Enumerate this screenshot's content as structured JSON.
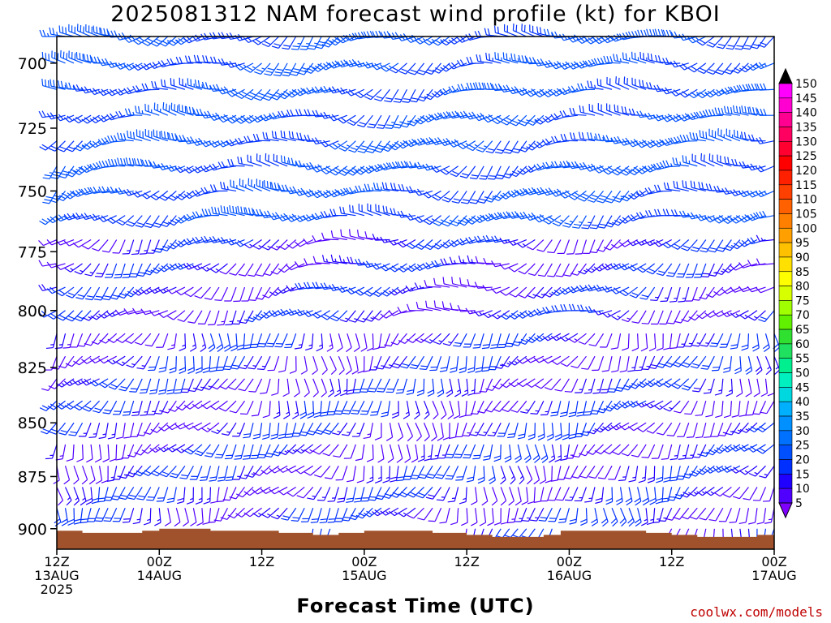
{
  "chart_data": {
    "type": "wind-barb-time-height",
    "title": "2025081312 NAM forecast wind profile (kt) for KBOI",
    "xlabel": "Forecast Time (UTC)",
    "credit": "coolwx.com/models",
    "y_axis": {
      "quantity": "pressure (hPa)",
      "range": [
        910,
        690
      ],
      "ticks": [
        "700",
        "725",
        "750",
        "775",
        "800",
        "825",
        "850",
        "875",
        "900"
      ]
    },
    "x_axis": {
      "range_hours": [
        0,
        84
      ],
      "ticks": [
        {
          "hour": 0,
          "line1": "12Z",
          "line2": "13AUG",
          "line3": "2025"
        },
        {
          "hour": 12,
          "line1": "00Z",
          "line2": "14AUG",
          "line3": ""
        },
        {
          "hour": 24,
          "line1": "12Z",
          "line2": "",
          "line3": ""
        },
        {
          "hour": 36,
          "line1": "00Z",
          "line2": "15AUG",
          "line3": ""
        },
        {
          "hour": 48,
          "line1": "12Z",
          "line2": "",
          "line3": ""
        },
        {
          "hour": 60,
          "line1": "00Z",
          "line2": "16AUG",
          "line3": ""
        },
        {
          "hour": 72,
          "line1": "12Z",
          "line2": "",
          "line3": ""
        },
        {
          "hour": 84,
          "line1": "00Z",
          "line2": "17AUG",
          "line3": ""
        }
      ]
    },
    "colorbar": {
      "unit": "kt",
      "labels": [
        "150",
        "145",
        "140",
        "135",
        "130",
        "125",
        "120",
        "115",
        "110",
        "105",
        "100",
        "95",
        "90",
        "85",
        "80",
        "75",
        "70",
        "65",
        "60",
        "55",
        "50",
        "45",
        "40",
        "35",
        "30",
        "25",
        "20",
        "15",
        "10",
        "5"
      ],
      "colors": [
        "#ff00ff",
        "#ff00d0",
        "#ff0090",
        "#ff0060",
        "#ff0030",
        "#ff0000",
        "#ff2000",
        "#ff4000",
        "#ff6000",
        "#ff8000",
        "#ffa000",
        "#ffc000",
        "#ffe000",
        "#ffff00",
        "#d8ff00",
        "#a0ff00",
        "#60f000",
        "#30e030",
        "#20e060",
        "#00f090",
        "#00f0c0",
        "#00d8e0",
        "#00b0ff",
        "#0090ff",
        "#0070ff",
        "#0050ff",
        "#0030ff",
        "#2000ff",
        "#5000ff",
        "#8000ff"
      ]
    },
    "terrain": {
      "color": "#a0522d",
      "surface_pressure": [
        {
          "hour": 0,
          "p": 901
        },
        {
          "hour": 3,
          "p": 902
        },
        {
          "hour": 9,
          "p": 902
        },
        {
          "hour": 10,
          "p": 901
        },
        {
          "hour": 12,
          "p": 900
        },
        {
          "hour": 16,
          "p": 900
        },
        {
          "hour": 18,
          "p": 901
        },
        {
          "hour": 24,
          "p": 901
        },
        {
          "hour": 26,
          "p": 902
        },
        {
          "hour": 30,
          "p": 903
        },
        {
          "hour": 33,
          "p": 902
        },
        {
          "hour": 36,
          "p": 901
        },
        {
          "hour": 42,
          "p": 901
        },
        {
          "hour": 44,
          "p": 902
        },
        {
          "hour": 48,
          "p": 903
        },
        {
          "hour": 51,
          "p": 904
        },
        {
          "hour": 57,
          "p": 903
        },
        {
          "hour": 59,
          "p": 901
        },
        {
          "hour": 66,
          "p": 901
        },
        {
          "hour": 69,
          "p": 902
        },
        {
          "hour": 72,
          "p": 903
        },
        {
          "hour": 75,
          "p": 904
        },
        {
          "hour": 81,
          "p": 904
        },
        {
          "hour": 82,
          "p": 903
        },
        {
          "hour": 84,
          "p": 903
        }
      ]
    },
    "wind_grid": {
      "time_step_hours": 1,
      "pressure_levels": [
        690,
        700,
        710,
        720,
        730,
        740,
        750,
        760,
        770,
        780,
        790,
        800,
        810,
        820,
        830,
        840,
        850,
        860,
        870,
        880,
        890,
        900
      ],
      "note": "barbs are generated by formula below in the drawing script from these regime keys",
      "regimes": [
        {
          "p_max": 760,
          "dir_deg": 250,
          "speed_kt": 25
        },
        {
          "p_max": 800,
          "dir_deg": 240,
          "speed_kt": 15
        },
        {
          "p_max": 910,
          "dir_deg": 200,
          "speed_kt": 15
        }
      ]
    }
  }
}
